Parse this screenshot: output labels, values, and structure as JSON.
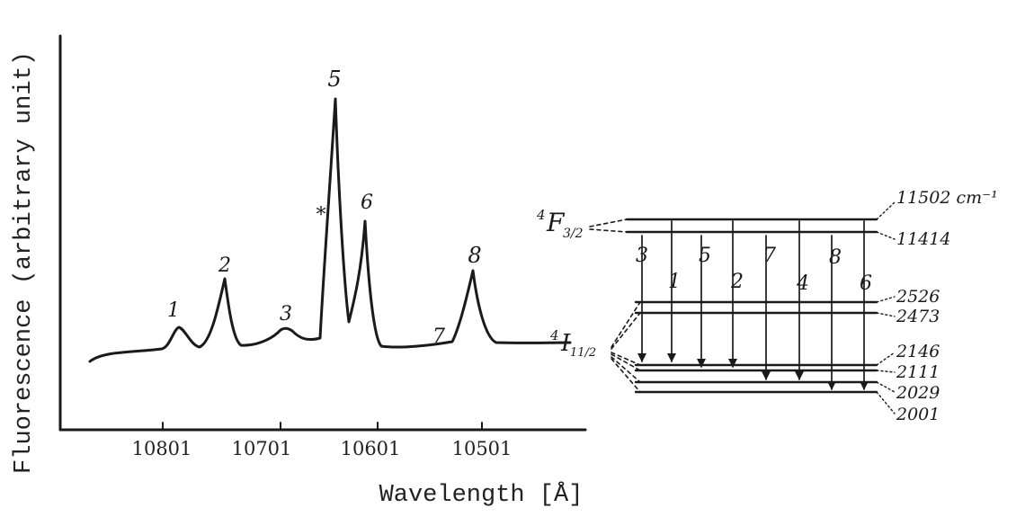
{
  "spectrum": {
    "ylabel": "Fluorescence (arbitrary unit)",
    "xlabel": "Wavelength  [Å]",
    "xticks": [
      "10801",
      "10701",
      "10601",
      "10501"
    ],
    "peaks": [
      "1",
      "2",
      "3",
      "*",
      "5",
      "6",
      "7",
      "8"
    ]
  },
  "levels": {
    "upper_term": "4F3/2",
    "lower_term": "4I11/2",
    "upper": [
      {
        "label": "11502 cm⁻¹"
      },
      {
        "label": "11414"
      }
    ],
    "lower": [
      {
        "label": "2526"
      },
      {
        "label": "2473"
      },
      {
        "label": "2146"
      },
      {
        "label": "2111"
      },
      {
        "label": "2029"
      },
      {
        "label": "2001"
      }
    ],
    "transitions": [
      {
        "label": "3",
        "from": 1,
        "to": 2
      },
      {
        "label": "1",
        "from": 0,
        "to": 2
      },
      {
        "label": "5",
        "from": 1,
        "to": 3
      },
      {
        "label": "2",
        "from": 0,
        "to": 3
      },
      {
        "label": "7",
        "from": 1,
        "to": 4
      },
      {
        "label": "4",
        "from": 0,
        "to": 4
      },
      {
        "label": "8",
        "from": 1,
        "to": 5
      },
      {
        "label": "6",
        "from": 0,
        "to": 5
      }
    ]
  }
}
